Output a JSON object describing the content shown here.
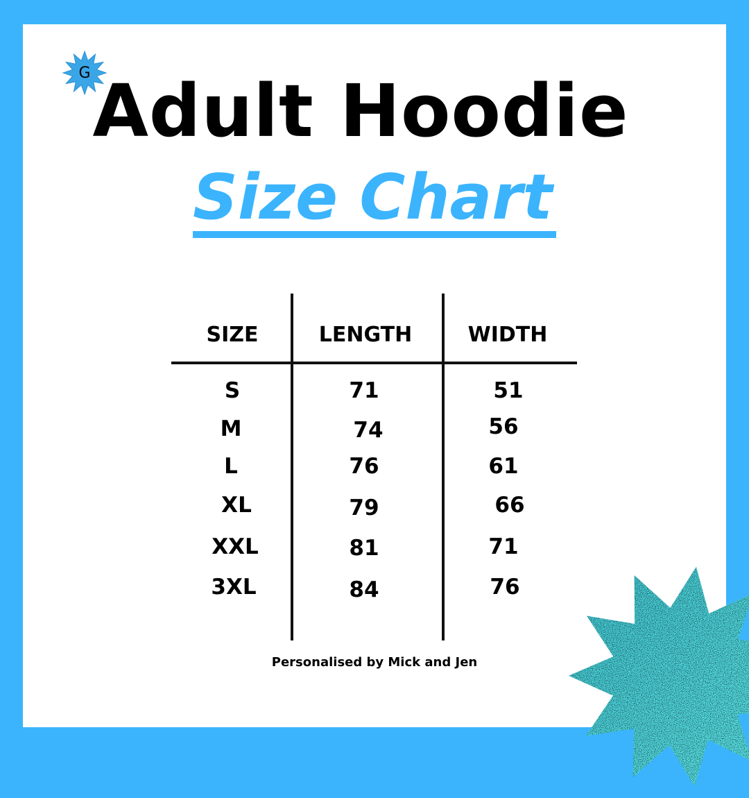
{
  "title": "Adult Hoodie",
  "subtitle": "Size Chart",
  "logo": {
    "letter": "G",
    "icon": "star-badge-icon"
  },
  "table": {
    "headers": [
      "SIZE",
      "LENGTH",
      "WIDTH"
    ],
    "rows": [
      [
        "S",
        "71",
        "51"
      ],
      [
        "M",
        "74",
        "56"
      ],
      [
        "L",
        "76",
        "61"
      ],
      [
        "XL",
        "79",
        "66"
      ],
      [
        "XXL",
        "81",
        "71"
      ],
      [
        "3XL",
        "84",
        "76"
      ]
    ]
  },
  "footer": "Personalised by Mick and Jen",
  "colors": {
    "border": "#3bb4fd",
    "accent": "#3bb4fd",
    "star": "#5ce0e6"
  }
}
